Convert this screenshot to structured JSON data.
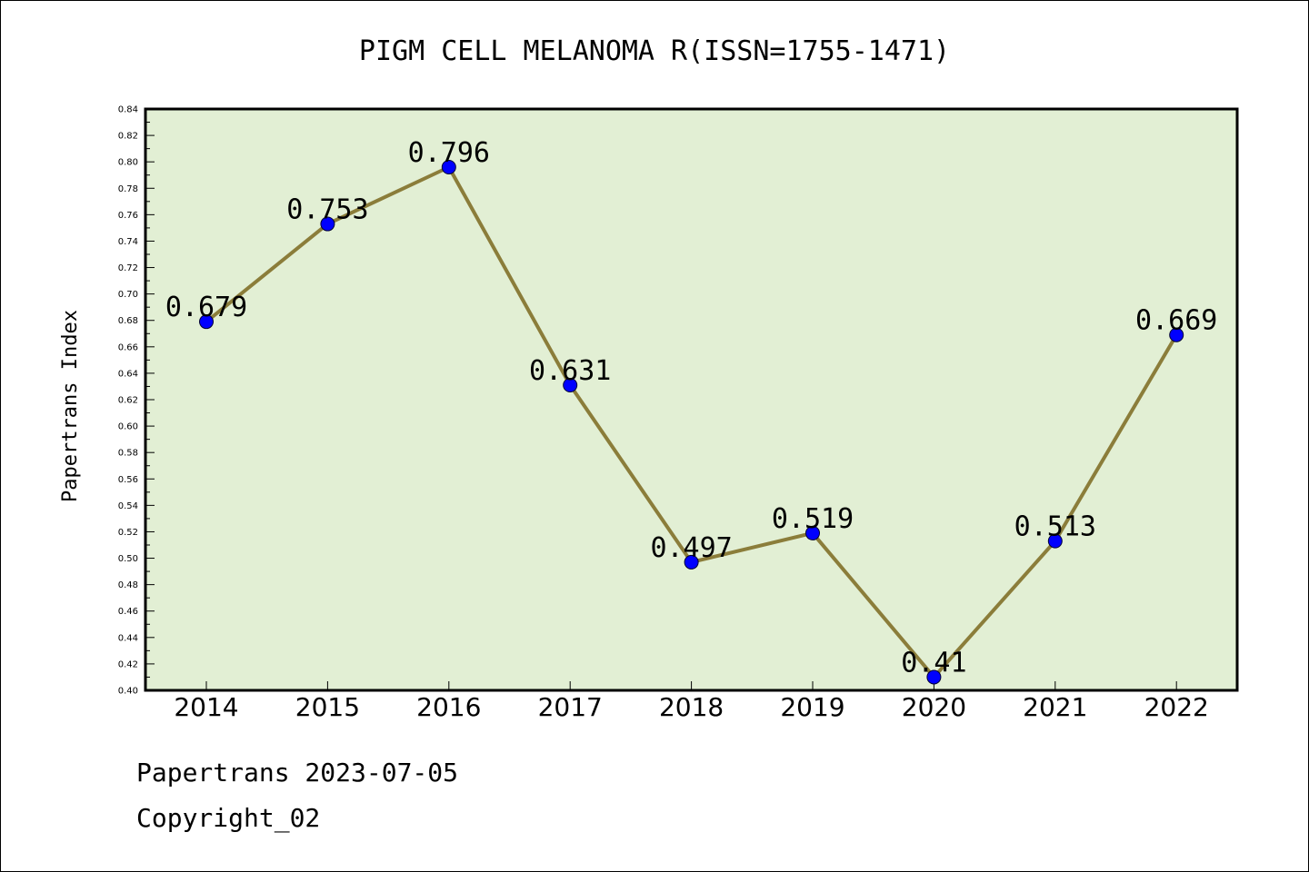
{
  "chart_data": {
    "type": "line",
    "title": "PIGM CELL MELANOMA R(ISSN=1755-1471)",
    "ylabel": "Papertrans Index",
    "xlabel": "",
    "categories": [
      "2014",
      "2015",
      "2016",
      "2017",
      "2018",
      "2019",
      "2020",
      "2021",
      "2022"
    ],
    "values": [
      0.679,
      0.753,
      0.796,
      0.631,
      0.497,
      0.519,
      0.41,
      0.513,
      0.669
    ],
    "data_labels": [
      "0.679",
      "0.753",
      "0.796",
      "0.631",
      "0.497",
      "0.519",
      "0.41",
      "0.513",
      "0.669"
    ],
    "ylim": [
      0.4,
      0.84
    ],
    "yticks": [
      "0.40",
      "0.42",
      "0.44",
      "0.46",
      "0.48",
      "0.50",
      "0.52",
      "0.54",
      "0.56",
      "0.58",
      "0.60",
      "0.62",
      "0.64",
      "0.66",
      "0.68",
      "0.70",
      "0.72",
      "0.74",
      "0.76",
      "0.78",
      "0.80",
      "0.82",
      "0.84"
    ],
    "grid": false,
    "legend": "none",
    "colors": {
      "plot_background": "#e2efd4",
      "line": "#8b7d3a",
      "marker": "#0000ff"
    }
  },
  "footer": {
    "date_line": "Papertrans 2023-07-05",
    "copyright": "Copyright_02"
  }
}
